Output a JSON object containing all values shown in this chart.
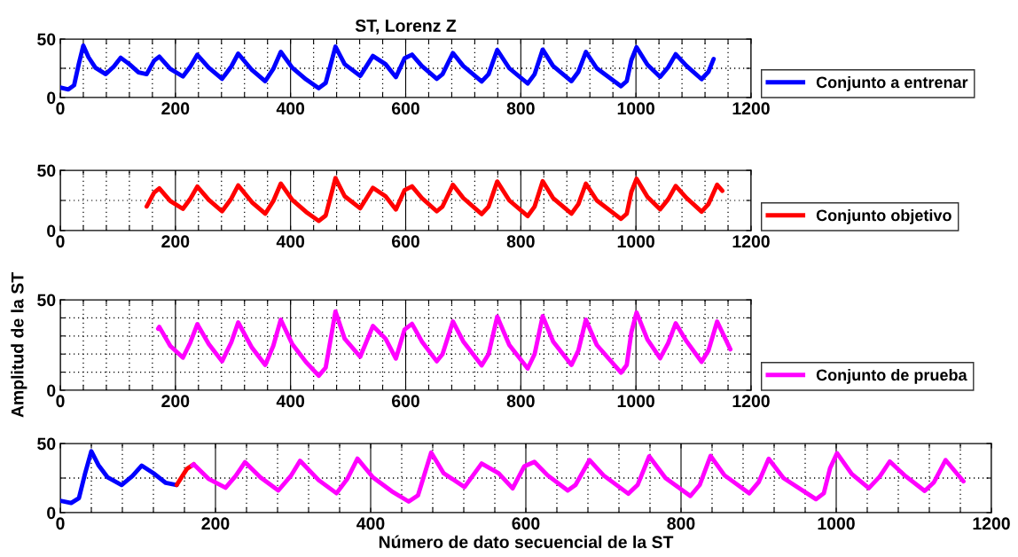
{
  "chart_data": [
    {
      "type": "line",
      "title": "ST, Lorenz Z",
      "xlim": [
        0,
        1200
      ],
      "ylim": [
        0,
        50
      ],
      "grid": true,
      "legend": "right",
      "line_style": "solid",
      "marker": "none",
      "xticks": [
        0,
        {
          "value": 40,
          "label": null
        },
        {
          "value": 80,
          "label": null
        },
        {
          "value": 120,
          "label": null
        },
        {
          "value": 160,
          "label": null
        },
        200,
        {
          "value": 240,
          "label": null
        },
        {
          "value": 280,
          "label": null
        },
        {
          "value": 320,
          "label": null
        },
        {
          "value": 360,
          "label": null
        },
        400,
        {
          "value": 440,
          "label": null
        },
        {
          "value": 480,
          "label": null
        },
        {
          "value": 520,
          "label": null
        },
        {
          "value": 560,
          "label": null
        },
        600,
        {
          "value": 640,
          "label": null
        },
        {
          "value": 680,
          "label": null
        },
        {
          "value": 720,
          "label": null
        },
        {
          "value": 760,
          "label": null
        },
        800,
        {
          "value": 840,
          "label": null
        },
        {
          "value": 880,
          "label": null
        },
        {
          "value": 920,
          "label": null
        },
        {
          "value": 960,
          "label": null
        },
        1000,
        {
          "value": 1040,
          "label": null
        },
        {
          "value": 1080,
          "label": null
        },
        {
          "value": 1120,
          "label": null
        },
        {
          "value": 1160,
          "label": null
        },
        1200
      ],
      "yticks": [
        0,
        {
          "value": 25,
          "label": null
        },
        50
      ],
      "series": [
        {
          "name": "Conjunto a entrenar",
          "color": "#0000ff",
          "x": [
            0,
            14,
            24,
            32,
            40,
            49,
            61,
            79,
            93,
            105,
            120,
            136,
            150,
            163,
            172,
            191,
            213,
            226,
            238,
            258,
            281,
            297,
            309,
            333,
            356,
            370,
            383,
            403,
            427,
            449,
            461,
            472,
            478,
            494,
            521,
            543,
            565,
            583,
            598,
            611,
            628,
            654,
            664,
            682,
            700,
            732,
            744,
            759,
            780,
            812,
            824,
            838,
            856,
            888,
            900,
            913,
            932,
            974,
            984,
            992,
            1001,
            1020,
            1042,
            1056,
            1069,
            1088,
            1114,
            1126,
            1135
          ],
          "values": [
            8.6,
            7,
            10.5,
            28.5,
            44.4,
            34.5,
            25.5,
            20,
            26.5,
            34,
            28.5,
            21.5,
            20,
            31.5,
            35,
            24.5,
            18,
            26.5,
            36.5,
            25.5,
            16,
            26.5,
            37.5,
            23.5,
            14,
            24.5,
            39,
            25.5,
            15.5,
            8,
            12.5,
            32.5,
            43.5,
            28.5,
            18.5,
            35.5,
            28.5,
            17.5,
            33.5,
            36.7,
            27,
            16,
            20,
            38,
            27,
            13.7,
            20,
            40.7,
            25,
            12,
            20,
            41,
            27,
            14,
            22,
            39,
            25,
            9.7,
            14,
            32,
            43,
            28,
            17.7,
            26,
            37,
            27,
            15.7,
            22,
            33
          ]
        }
      ]
    },
    {
      "type": "line",
      "xlim": [
        0,
        1200
      ],
      "ylim": [
        0,
        50
      ],
      "grid": true,
      "legend": "right",
      "line_style": "solid",
      "marker": "none",
      "xticks": [
        0,
        {
          "value": 40,
          "label": null
        },
        {
          "value": 80,
          "label": null
        },
        {
          "value": 120,
          "label": null
        },
        {
          "value": 160,
          "label": null
        },
        200,
        {
          "value": 240,
          "label": null
        },
        {
          "value": 280,
          "label": null
        },
        {
          "value": 320,
          "label": null
        },
        {
          "value": 360,
          "label": null
        },
        400,
        {
          "value": 440,
          "label": null
        },
        {
          "value": 480,
          "label": null
        },
        {
          "value": 520,
          "label": null
        },
        {
          "value": 560,
          "label": null
        },
        600,
        {
          "value": 640,
          "label": null
        },
        {
          "value": 680,
          "label": null
        },
        {
          "value": 720,
          "label": null
        },
        {
          "value": 760,
          "label": null
        },
        800,
        {
          "value": 840,
          "label": null
        },
        {
          "value": 880,
          "label": null
        },
        {
          "value": 920,
          "label": null
        },
        {
          "value": 960,
          "label": null
        },
        1000,
        {
          "value": 1040,
          "label": null
        },
        {
          "value": 1080,
          "label": null
        },
        {
          "value": 1120,
          "label": null
        },
        {
          "value": 1160,
          "label": null
        },
        1200
      ],
      "yticks": [
        0,
        {
          "value": 25,
          "label": null
        },
        50
      ],
      "series": [
        {
          "name": "Conjunto objetivo",
          "color": "#ff0000",
          "x": [
            150,
            163,
            172,
            191,
            213,
            226,
            238,
            258,
            281,
            297,
            309,
            333,
            356,
            370,
            383,
            403,
            427,
            449,
            461,
            472,
            478,
            494,
            521,
            543,
            565,
            583,
            598,
            611,
            628,
            654,
            664,
            682,
            700,
            732,
            744,
            759,
            780,
            812,
            824,
            838,
            856,
            888,
            900,
            913,
            932,
            974,
            984,
            992,
            1001,
            1020,
            1042,
            1056,
            1069,
            1088,
            1114,
            1126,
            1141,
            1150
          ],
          "values": [
            20,
            31.5,
            35,
            24.5,
            18,
            26.5,
            36.5,
            25.5,
            16,
            26.5,
            37.5,
            23.5,
            14,
            24.5,
            39,
            25.5,
            15.5,
            8,
            12.5,
            32.5,
            43.5,
            28.5,
            18.5,
            35.5,
            28.5,
            17.5,
            33.5,
            36.7,
            27,
            16,
            20,
            38,
            27,
            13.7,
            20,
            40.7,
            25,
            12,
            20,
            41,
            27,
            14,
            22,
            39,
            25,
            9.7,
            14,
            32,
            43,
            28,
            17.7,
            26,
            37,
            27,
            15.7,
            22,
            38,
            33
          ]
        }
      ]
    },
    {
      "type": "line",
      "ylabel": "Amplitud de la ST",
      "xlim": [
        0,
        1200
      ],
      "ylim": [
        0,
        50
      ],
      "grid": true,
      "legend": "right",
      "line_style": "solid",
      "marker": "none",
      "xticks": [
        0,
        {
          "value": 40,
          "label": null
        },
        {
          "value": 80,
          "label": null
        },
        {
          "value": 120,
          "label": null
        },
        {
          "value": 160,
          "label": null
        },
        200,
        {
          "value": 240,
          "label": null
        },
        {
          "value": 280,
          "label": null
        },
        {
          "value": 320,
          "label": null
        },
        {
          "value": 360,
          "label": null
        },
        400,
        {
          "value": 440,
          "label": null
        },
        {
          "value": 480,
          "label": null
        },
        {
          "value": 520,
          "label": null
        },
        {
          "value": 560,
          "label": null
        },
        600,
        {
          "value": 640,
          "label": null
        },
        {
          "value": 680,
          "label": null
        },
        {
          "value": 720,
          "label": null
        },
        {
          "value": 760,
          "label": null
        },
        800,
        {
          "value": 840,
          "label": null
        },
        {
          "value": 880,
          "label": null
        },
        {
          "value": 920,
          "label": null
        },
        {
          "value": 960,
          "label": null
        },
        1000,
        {
          "value": 1040,
          "label": null
        },
        {
          "value": 1080,
          "label": null
        },
        {
          "value": 1120,
          "label": null
        },
        {
          "value": 1160,
          "label": null
        },
        1200
      ],
      "yticks": [
        0,
        {
          "value": 10,
          "label": null
        },
        {
          "value": 20,
          "label": null
        },
        {
          "value": 30,
          "label": null
        },
        {
          "value": 40,
          "label": null
        },
        50
      ],
      "series": [
        {
          "name": "Conjunto de prueba",
          "color": "#ff00ff",
          "x": [
            170,
            172,
            191,
            213,
            226,
            238,
            258,
            281,
            297,
            309,
            333,
            356,
            370,
            383,
            403,
            427,
            449,
            461,
            472,
            478,
            494,
            521,
            543,
            565,
            583,
            598,
            611,
            628,
            654,
            664,
            682,
            700,
            732,
            744,
            759,
            780,
            812,
            824,
            838,
            856,
            888,
            900,
            913,
            932,
            974,
            984,
            992,
            1001,
            1020,
            1042,
            1056,
            1069,
            1088,
            1114,
            1126,
            1141,
            1164
          ],
          "values": [
            34,
            35,
            24.5,
            18,
            26.5,
            36.5,
            25.5,
            16,
            26.5,
            37.5,
            23.5,
            14,
            24.5,
            39,
            25.5,
            15.5,
            8,
            12.5,
            32.5,
            43.5,
            28.5,
            18.5,
            35.5,
            28.5,
            17.5,
            33.5,
            36.7,
            27,
            16,
            20,
            38,
            27,
            13.7,
            20,
            40.7,
            25,
            12,
            20,
            41,
            27,
            14,
            22,
            39,
            25,
            9.7,
            14,
            32,
            43,
            28,
            17.7,
            26,
            37,
            27,
            15.7,
            22,
            38,
            22.6
          ]
        }
      ]
    },
    {
      "type": "line",
      "xlabel": "Número de dato secuencial de la ST",
      "xlim": [
        0,
        1200
      ],
      "ylim": [
        0,
        50
      ],
      "grid": true,
      "line_style": "solid",
      "marker": "none",
      "xticks": [
        0,
        {
          "value": 40,
          "label": null
        },
        {
          "value": 80,
          "label": null
        },
        {
          "value": 120,
          "label": null
        },
        {
          "value": 160,
          "label": null
        },
        200,
        {
          "value": 240,
          "label": null
        },
        {
          "value": 280,
          "label": null
        },
        {
          "value": 320,
          "label": null
        },
        {
          "value": 360,
          "label": null
        },
        400,
        {
          "value": 440,
          "label": null
        },
        {
          "value": 480,
          "label": null
        },
        {
          "value": 520,
          "label": null
        },
        {
          "value": 560,
          "label": null
        },
        600,
        {
          "value": 640,
          "label": null
        },
        {
          "value": 680,
          "label": null
        },
        {
          "value": 720,
          "label": null
        },
        {
          "value": 760,
          "label": null
        },
        800,
        {
          "value": 840,
          "label": null
        },
        {
          "value": 880,
          "label": null
        },
        {
          "value": 920,
          "label": null
        },
        {
          "value": 960,
          "label": null
        },
        1000,
        {
          "value": 1040,
          "label": null
        },
        {
          "value": 1080,
          "label": null
        },
        {
          "value": 1120,
          "label": null
        },
        {
          "value": 1160,
          "label": null
        },
        1200
      ],
      "yticks": [
        0,
        {
          "value": 25,
          "label": null
        },
        50
      ],
      "series": [
        {
          "color": "#0000ff",
          "x": [
            0,
            14,
            24,
            32,
            40,
            49,
            61,
            79,
            93,
            105,
            120,
            136,
            150
          ],
          "values": [
            8.6,
            7,
            10.5,
            28.5,
            44.4,
            34.5,
            25.5,
            20,
            26.5,
            34,
            28.5,
            21.5,
            20
          ]
        },
        {
          "color": "#ff0000",
          "x": [
            150,
            163,
            172
          ],
          "values": [
            20,
            31.5,
            35
          ]
        },
        {
          "color": "#ff00ff",
          "x": [
            170,
            172,
            191,
            213,
            226,
            238,
            258,
            281,
            297,
            309,
            333,
            356,
            370,
            383,
            403,
            427,
            449,
            461,
            472,
            478,
            494,
            521,
            543,
            565,
            583,
            598,
            611,
            628,
            654,
            664,
            682,
            700,
            732,
            744,
            759,
            780,
            812,
            824,
            838,
            856,
            888,
            900,
            913,
            932,
            974,
            984,
            992,
            1001,
            1020,
            1042,
            1056,
            1069,
            1088,
            1114,
            1126,
            1141,
            1164
          ],
          "values": [
            34,
            35,
            24.5,
            18,
            26.5,
            36.5,
            25.5,
            16,
            26.5,
            37.5,
            23.5,
            14,
            24.5,
            39,
            25.5,
            15.5,
            8,
            12.5,
            32.5,
            43.5,
            28.5,
            18.5,
            35.5,
            28.5,
            17.5,
            33.5,
            36.7,
            27,
            16,
            20,
            38,
            27,
            13.7,
            20,
            40.7,
            25,
            12,
            20,
            41,
            27,
            14,
            22,
            39,
            25,
            9.7,
            14,
            32,
            43,
            28,
            17.7,
            26,
            37,
            27,
            15.7,
            22,
            38,
            22.6
          ]
        }
      ]
    }
  ]
}
